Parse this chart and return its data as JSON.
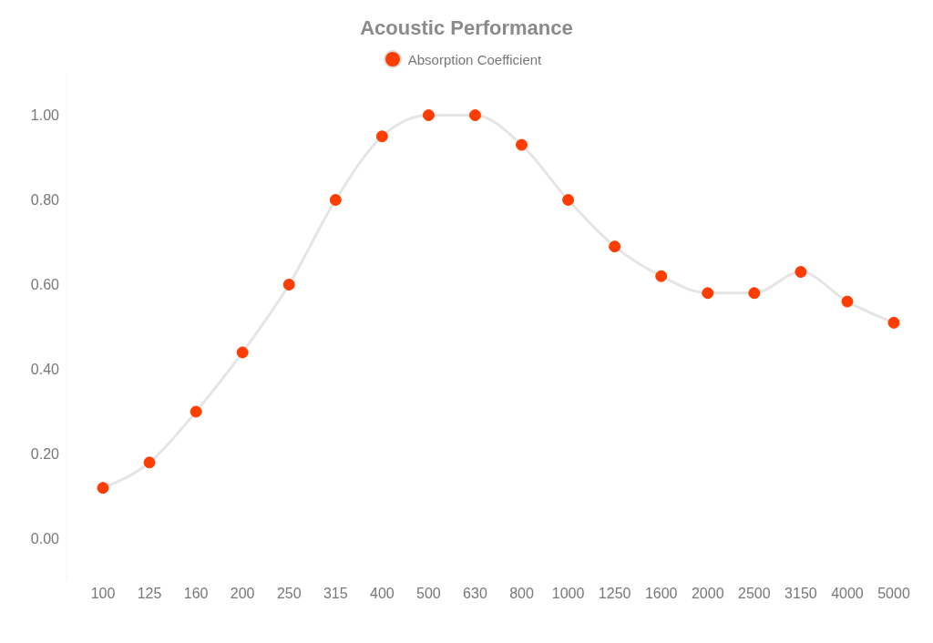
{
  "chart_data": {
    "type": "line",
    "title": "Acoustic Performance",
    "categories": [
      "100",
      "125",
      "160",
      "200",
      "250",
      "315",
      "400",
      "500",
      "630",
      "800",
      "1000",
      "1250",
      "1600",
      "2000",
      "2500",
      "3150",
      "4000",
      "5000"
    ],
    "series": [
      {
        "name": "Absorption Coefficient",
        "color": "#ff3d00",
        "values": [
          0.12,
          0.18,
          0.3,
          0.44,
          0.6,
          0.8,
          0.95,
          1.0,
          1.0,
          0.93,
          0.8,
          0.69,
          0.62,
          0.58,
          0.58,
          0.63,
          0.56,
          0.51
        ]
      }
    ],
    "ylim": [
      -0.1,
      1.1
    ],
    "yticks": [
      {
        "value": 0,
        "label": "0.00"
      },
      {
        "value": 0.2,
        "label": "0.20"
      },
      {
        "value": 0.4,
        "label": "0.40"
      },
      {
        "value": 0.6,
        "label": "0.60"
      },
      {
        "value": 0.8,
        "label": "0.80"
      },
      {
        "value": 1,
        "label": "1.00"
      }
    ],
    "grid": false,
    "legend": "top",
    "marker": "circle"
  }
}
